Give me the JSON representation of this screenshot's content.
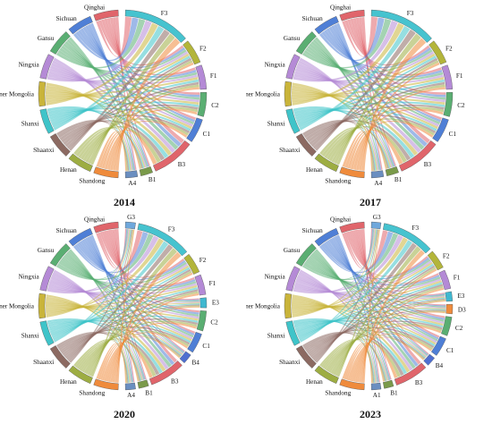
{
  "panels": [
    {
      "year": "2014",
      "regions": [
        "Qinghai",
        "Sichuan",
        "Gansu",
        "Ningxia",
        "Inner Mongolia",
        "Shanxi",
        "Shaanxi",
        "Henan",
        "Shandong"
      ],
      "indicators": [
        "F3",
        "F2",
        "F1",
        "C2",
        "C1",
        "B3",
        "B1",
        "A4"
      ]
    },
    {
      "year": "2017",
      "regions": [
        "Qinghai",
        "Sichuan",
        "Gansu",
        "Ningxia",
        "Inner Mongolia",
        "Shanxi",
        "Shaanxi",
        "Henan",
        "Shandong"
      ],
      "indicators": [
        "F3",
        "F2",
        "F1",
        "C2",
        "C1",
        "B3",
        "B1",
        "A4"
      ]
    },
    {
      "year": "2020",
      "regions": [
        "Qinghai",
        "Sichuan",
        "Gansu",
        "Ningxia",
        "Inner Mongolia",
        "Shanxi",
        "Shaanxi",
        "Henan",
        "Shandong"
      ],
      "indicators": [
        "G3",
        "F3",
        "F2",
        "F1",
        "E3",
        "C2",
        "C1",
        "B4",
        "B3",
        "B1",
        "A4"
      ]
    },
    {
      "year": "2023",
      "regions": [
        "Qinghai",
        "Sichuan",
        "Gansu",
        "Ningxia",
        "Inner Mongolia",
        "Shanxi",
        "Shaanxi",
        "Henan",
        "Shandong"
      ],
      "indicators": [
        "G3",
        "F3",
        "F2",
        "F1",
        "E3",
        "D3",
        "C2",
        "C1",
        "B4",
        "B3",
        "B1",
        "A1"
      ]
    }
  ],
  "colors": {
    "regions": [
      "#e0656b",
      "#4f7fd6",
      "#5aae72",
      "#b58ad6",
      "#c9b43a",
      "#3fc4c9",
      "#8c6a62",
      "#9dad42",
      "#ef8b3c"
    ],
    "indicators": {
      "G3": "#6fa8dc",
      "F3": "#46c3cf",
      "F2": "#b3b53a",
      "F1": "#b48ad6",
      "E3": "#3fb8d0",
      "D3": "#ef8b3c",
      "C2": "#5aae72",
      "C1": "#4f7fd6",
      "B4": "#4f6fd0",
      "B3": "#e0656b",
      "B1": "#7a9a4a",
      "A4": "#6a8ec0",
      "A1": "#6a8ec0"
    }
  }
}
